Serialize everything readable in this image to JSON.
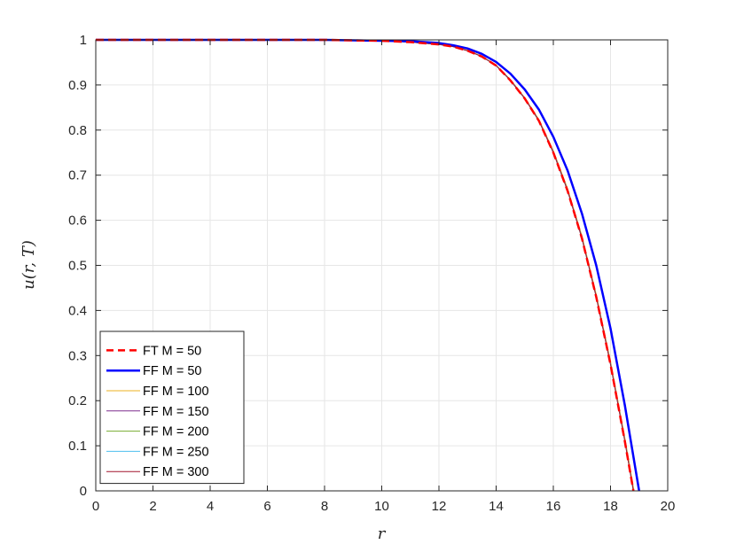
{
  "chart_data": {
    "type": "line",
    "xlabel": "r",
    "ylabel": "u(r, T)",
    "xlim": [
      0,
      20
    ],
    "ylim": [
      0,
      1
    ],
    "xticks": [
      0,
      2,
      4,
      6,
      8,
      10,
      12,
      14,
      16,
      18,
      20
    ],
    "yticks": [
      0,
      0.1,
      0.2,
      0.3,
      0.4,
      0.5,
      0.6,
      0.7,
      0.8,
      0.9,
      1
    ],
    "grid": true,
    "legend_position": "bottom-left",
    "series": [
      {
        "name": "FT M = 50",
        "color": "#ff0000",
        "style": "dashed",
        "x": [
          0,
          2,
          4,
          6,
          8,
          9,
          10,
          11,
          12,
          12.5,
          13,
          13.5,
          14,
          14.5,
          15,
          15.5,
          16,
          16.5,
          17,
          17.5,
          18,
          18.5,
          18.8
        ],
        "y": [
          1,
          1,
          1,
          1,
          1,
          0.999,
          0.998,
          0.995,
          0.99,
          0.985,
          0.976,
          0.963,
          0.943,
          0.91,
          0.87,
          0.82,
          0.75,
          0.665,
          0.56,
          0.43,
          0.28,
          0.11,
          0
        ]
      },
      {
        "name": "FF M = 50",
        "color": "#0000ff",
        "style": "solid-thick",
        "x": [
          0,
          2,
          4,
          6,
          8,
          9,
          10,
          11,
          12,
          12.5,
          13,
          13.5,
          14,
          14.5,
          15,
          15.5,
          16,
          16.5,
          17,
          17.5,
          18,
          18.5,
          19
        ],
        "y": [
          1,
          1,
          1,
          1,
          1,
          0.999,
          0.998,
          0.997,
          0.993,
          0.988,
          0.981,
          0.969,
          0.951,
          0.925,
          0.89,
          0.845,
          0.785,
          0.71,
          0.615,
          0.5,
          0.36,
          0.19,
          0
        ]
      },
      {
        "name": "FF M = 100",
        "color": "#edb120",
        "style": "solid",
        "x": [
          0,
          2,
          4,
          6,
          8,
          9,
          10,
          11,
          12,
          12.5,
          13,
          13.5,
          14,
          14.5,
          15,
          15.5,
          16,
          16.5,
          17,
          17.5,
          18,
          18.5,
          18.82
        ],
        "y": [
          1,
          1,
          1,
          1,
          1,
          0.999,
          0.998,
          0.995,
          0.99,
          0.985,
          0.977,
          0.964,
          0.944,
          0.912,
          0.872,
          0.823,
          0.754,
          0.67,
          0.565,
          0.436,
          0.287,
          0.118,
          0
        ]
      },
      {
        "name": "FF M = 150",
        "color": "#7e2f8e",
        "style": "solid",
        "x": [
          0,
          2,
          4,
          6,
          8,
          9,
          10,
          11,
          12,
          12.5,
          13,
          13.5,
          14,
          14.5,
          15,
          15.5,
          16,
          16.5,
          17,
          17.5,
          18,
          18.5,
          18.8
        ],
        "y": [
          1,
          1,
          1,
          1,
          1,
          0.999,
          0.998,
          0.995,
          0.99,
          0.985,
          0.976,
          0.963,
          0.943,
          0.911,
          0.871,
          0.821,
          0.752,
          0.667,
          0.562,
          0.432,
          0.283,
          0.113,
          0
        ]
      },
      {
        "name": "FF M = 200",
        "color": "#77ac30",
        "style": "solid",
        "x": [
          0,
          2,
          4,
          6,
          8,
          9,
          10,
          11,
          12,
          12.5,
          13,
          13.5,
          14,
          14.5,
          15,
          15.5,
          16,
          16.5,
          17,
          17.5,
          18,
          18.5,
          18.8
        ],
        "y": [
          1,
          1,
          1,
          1,
          1,
          0.999,
          0.998,
          0.995,
          0.99,
          0.985,
          0.976,
          0.963,
          0.943,
          0.91,
          0.87,
          0.82,
          0.751,
          0.666,
          0.561,
          0.431,
          0.282,
          0.112,
          0
        ]
      },
      {
        "name": "FF M = 250",
        "color": "#4dbeee",
        "style": "solid",
        "x": [
          0,
          2,
          4,
          6,
          8,
          9,
          10,
          11,
          12,
          12.5,
          13,
          13.5,
          14,
          14.5,
          15,
          15.5,
          16,
          16.5,
          17,
          17.5,
          18,
          18.5,
          18.8
        ],
        "y": [
          1,
          1,
          1,
          1,
          1,
          0.999,
          0.998,
          0.995,
          0.99,
          0.985,
          0.976,
          0.963,
          0.943,
          0.91,
          0.87,
          0.82,
          0.75,
          0.665,
          0.56,
          0.43,
          0.281,
          0.111,
          0
        ]
      },
      {
        "name": "FF M = 300",
        "color": "#a2142f",
        "style": "solid",
        "x": [
          0,
          2,
          4,
          6,
          8,
          9,
          10,
          11,
          12,
          12.5,
          13,
          13.5,
          14,
          14.5,
          15,
          15.5,
          16,
          16.5,
          17,
          17.5,
          18,
          18.5,
          18.8
        ],
        "y": [
          1,
          1,
          1,
          1,
          1,
          0.999,
          0.998,
          0.995,
          0.99,
          0.985,
          0.976,
          0.963,
          0.943,
          0.91,
          0.87,
          0.82,
          0.75,
          0.665,
          0.56,
          0.43,
          0.28,
          0.11,
          0
        ]
      }
    ]
  }
}
